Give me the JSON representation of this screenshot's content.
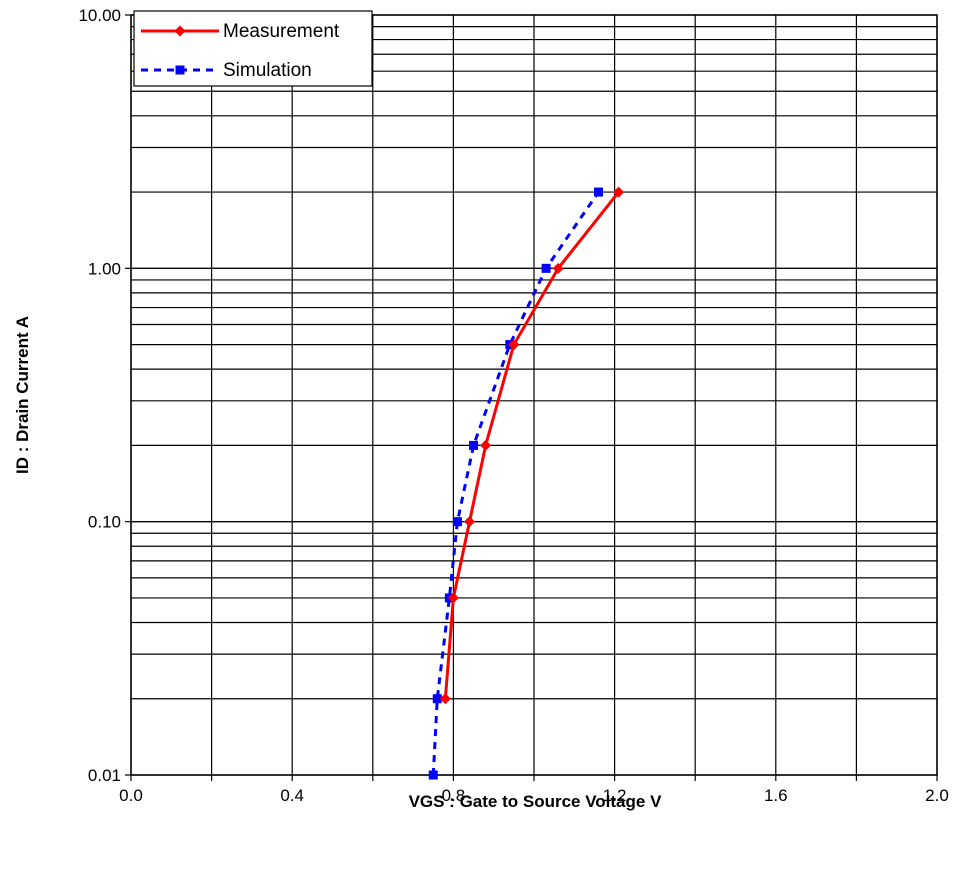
{
  "chart_data": {
    "type": "line",
    "title": "",
    "xlabel": "VGS : Gate to Source Voltage  V",
    "ylabel": "ID : Drain Current  A",
    "xlim": [
      0.0,
      2.0
    ],
    "ylim": [
      0.01,
      10.0
    ],
    "yscale": "log",
    "grid": true,
    "legend_position": "top-left",
    "x_ticks": [
      "0.0",
      "0.4",
      "0.8",
      "1.2",
      "1.6",
      "2.0"
    ],
    "y_ticks": [
      "0.01",
      "0.10",
      "1.00",
      "10.00"
    ],
    "series": [
      {
        "name": "Measurement",
        "color": "#ff0000",
        "line_style": "solid",
        "marker": "diamond",
        "x": [
          0.78,
          0.8,
          0.84,
          0.88,
          0.95,
          1.06,
          1.21
        ],
        "y": [
          0.02,
          0.05,
          0.1,
          0.2,
          0.5,
          1.0,
          2.0
        ]
      },
      {
        "name": "Simulation",
        "color": "#0000ff",
        "line_style": "dashed",
        "marker": "square",
        "x": [
          0.75,
          0.76,
          0.79,
          0.81,
          0.85,
          0.94,
          1.03,
          1.16
        ],
        "y": [
          0.01,
          0.02,
          0.05,
          0.1,
          0.2,
          0.5,
          1.0,
          2.0
        ]
      }
    ]
  }
}
